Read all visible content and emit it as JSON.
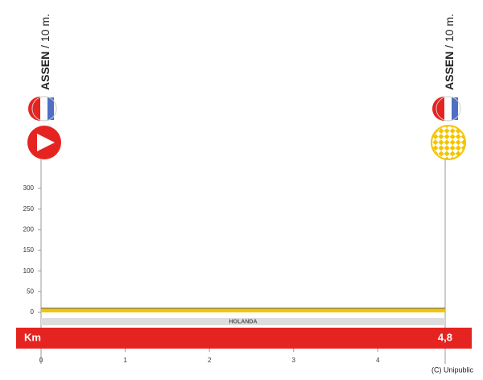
{
  "chart_data": {
    "type": "profile",
    "start": {
      "name": "ASSEN",
      "altitude": "/ 10 m."
    },
    "finish": {
      "name": "ASSEN",
      "altitude": "/ 10 m."
    },
    "x": [
      0,
      4.8
    ],
    "values": [
      10,
      10
    ],
    "color": "#f5c400",
    "xlim": [
      0,
      4.8
    ],
    "xticks": [
      0,
      1,
      2,
      3,
      4
    ],
    "ylim": [
      0,
      300
    ],
    "yticks": [
      0,
      50,
      100,
      150,
      200,
      250,
      300
    ],
    "country": "HOLANDA",
    "x_label": "Km",
    "distance_label": "4,8",
    "credit": "(C) Unipublic"
  }
}
